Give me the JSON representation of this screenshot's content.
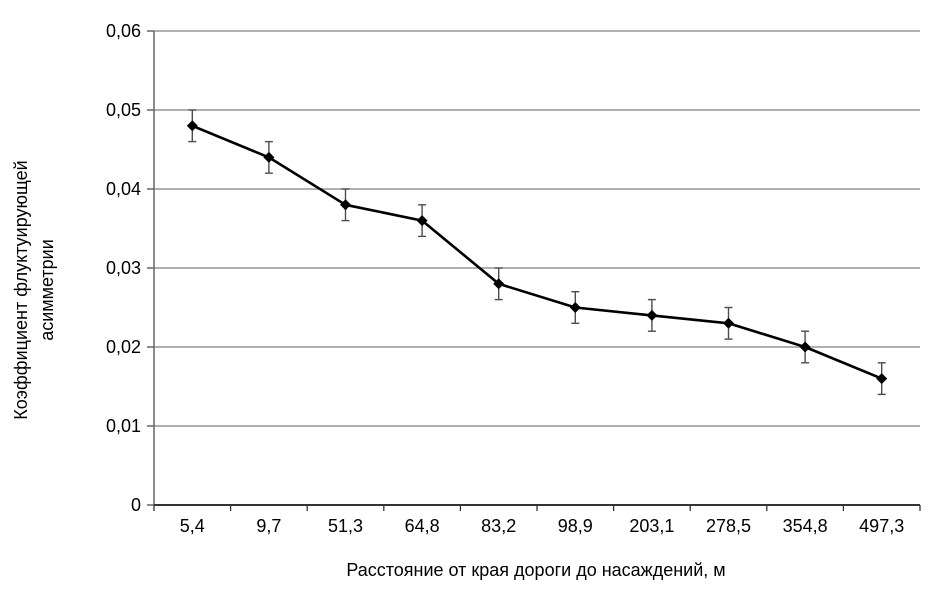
{
  "chart_data": {
    "type": "line",
    "title": "",
    "categories": [
      "5,4",
      "9,7",
      "51,3",
      "64,8",
      "83,2",
      "98,9",
      "203,1",
      "278,5",
      "354,8",
      "497,3"
    ],
    "values": [
      0.048,
      0.044,
      0.038,
      0.036,
      0.028,
      0.025,
      0.024,
      0.023,
      0.02,
      0.016
    ],
    "error": 0.002,
    "xlabel": "Расстояние от края дороги до насаждений, м",
    "ylabel_lines": [
      "Коэффициент флуктуирующей",
      "асимметрии"
    ],
    "ylim": [
      0,
      0.06
    ],
    "ytick_step": 0.01,
    "ytick_labels": [
      "0",
      "0,01",
      "0,02",
      "0,03",
      "0,04",
      "0,05",
      "0,06"
    ],
    "grid": true,
    "legend": "none",
    "marker": "diamond",
    "colors": {
      "line": "#000000",
      "marker": "#000000",
      "grid": "#808080",
      "axis_y": "#666666",
      "axis_x": "#333333",
      "error_bar": "#4d4d4d",
      "text": "#000000",
      "background": "#ffffff"
    }
  }
}
